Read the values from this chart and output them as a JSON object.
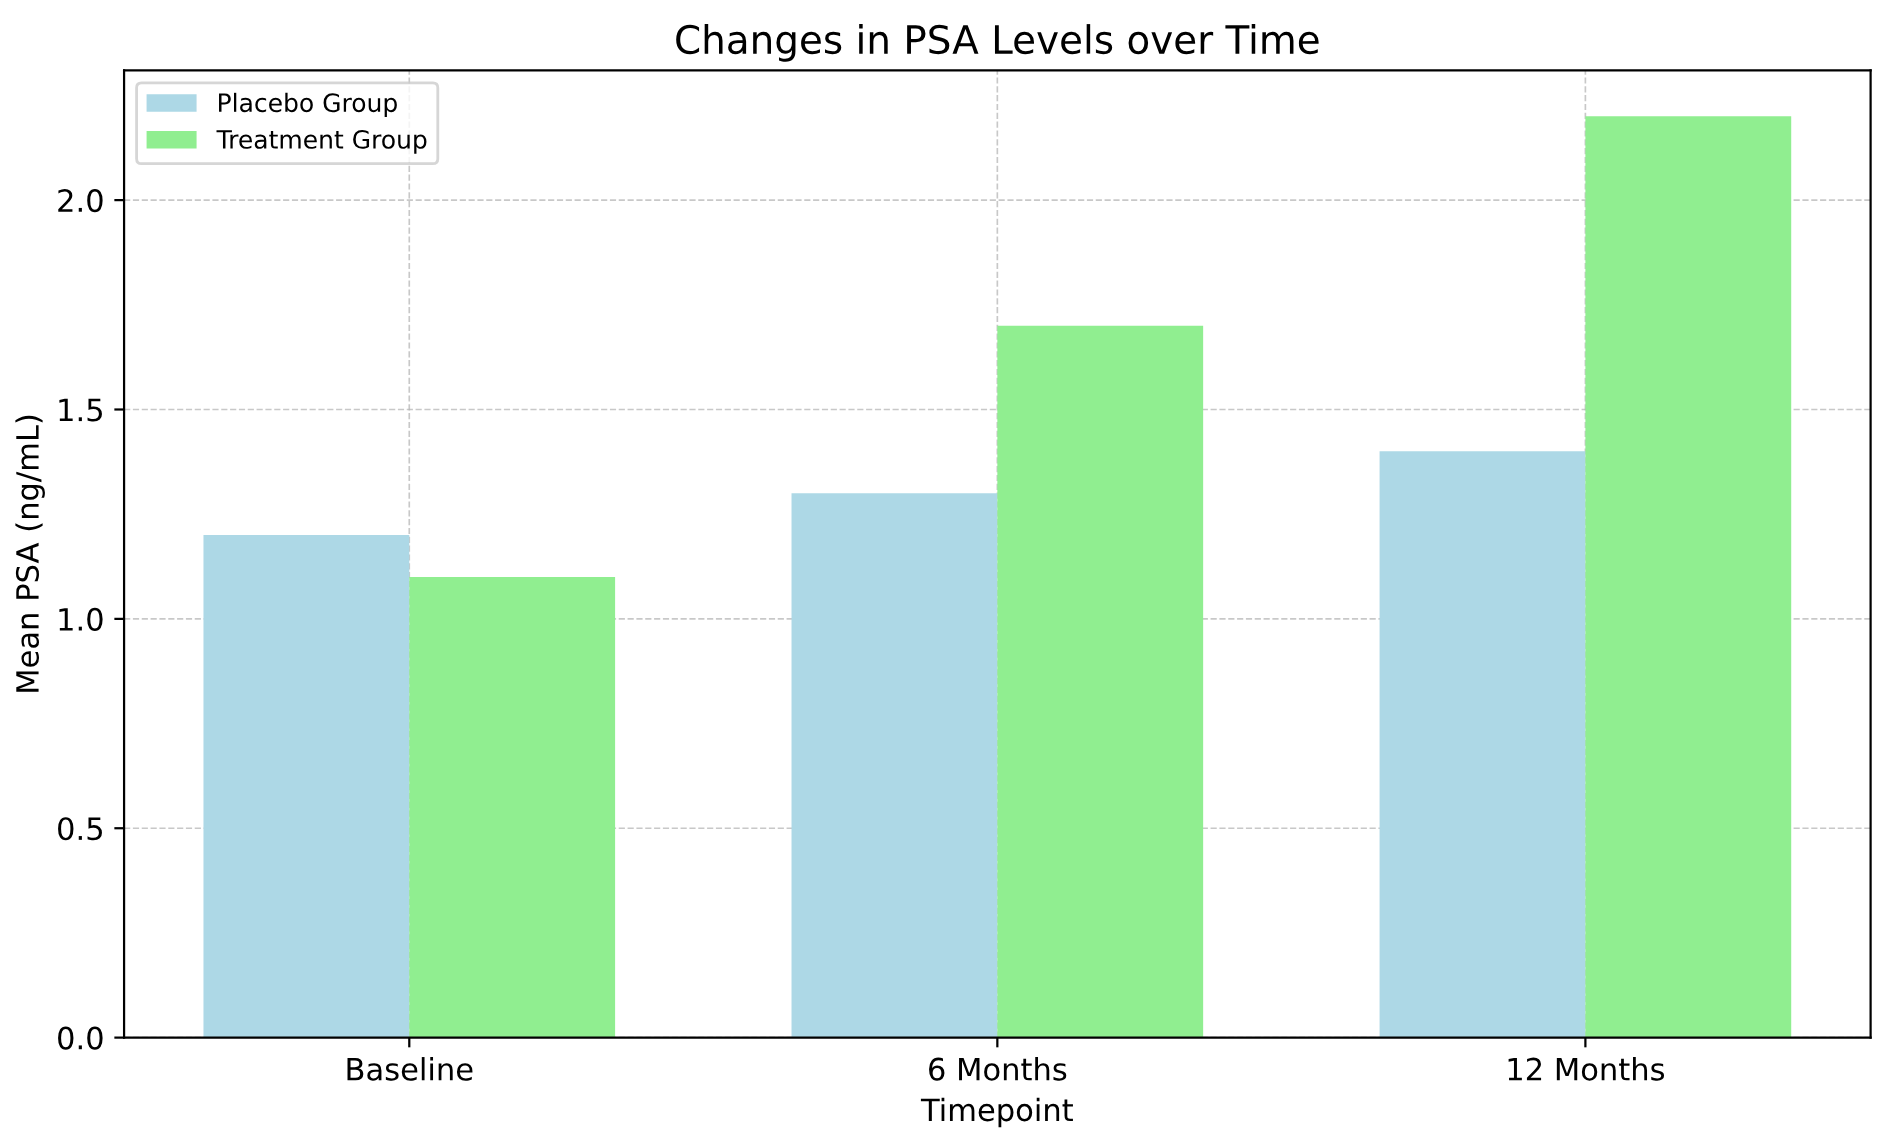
{
  "chart_data": {
    "type": "bar",
    "title": "Changes in PSA Levels over Time",
    "xlabel": "Timepoint",
    "ylabel": "Mean PSA (ng/mL)",
    "categories": [
      "Baseline",
      "6 Months",
      "12 Months"
    ],
    "series": [
      {
        "name": "Placebo Group",
        "color": "#add8e6",
        "values": [
          1.2,
          1.3,
          1.4
        ]
      },
      {
        "name": "Treatment Group",
        "color": "#90ee90",
        "values": [
          1.1,
          1.7,
          2.2
        ]
      }
    ],
    "ylim": [
      0,
      2.31
    ],
    "yticks": [
      {
        "value": 0,
        "label": "0.0"
      },
      {
        "value": 0.5,
        "label": "0.5"
      },
      {
        "value": 1,
        "label": "1.0"
      },
      {
        "value": 1.5,
        "label": "1.5"
      },
      {
        "value": 2,
        "label": "2.0"
      }
    ],
    "grid": true,
    "legend": "top left"
  }
}
